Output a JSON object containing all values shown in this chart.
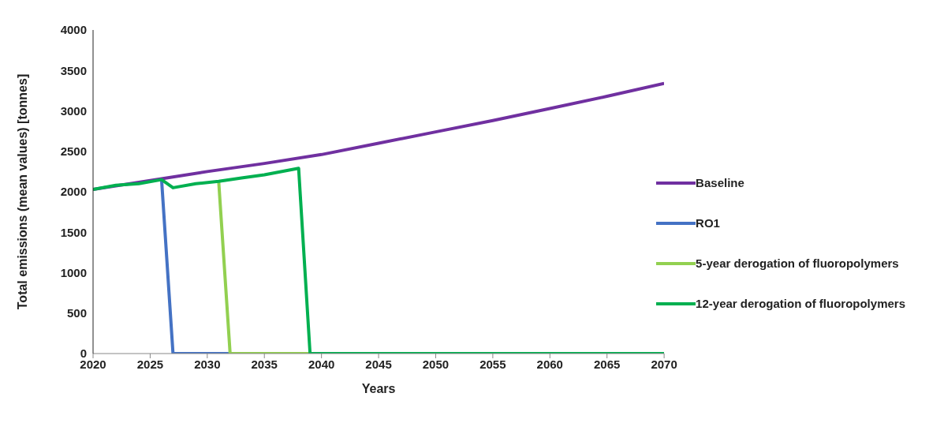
{
  "chart_data": {
    "type": "line",
    "xlabel": "Years",
    "ylabel": "Total emissions (mean values)  [tonnes]",
    "xlim": [
      2020,
      2070
    ],
    "xticks": [
      2020,
      2025,
      2030,
      2035,
      2040,
      2045,
      2050,
      2055,
      2060,
      2065,
      2070
    ],
    "ylim": [
      0,
      4000
    ],
    "yticks": [
      0,
      500,
      1000,
      1500,
      2000,
      2500,
      3000,
      3500,
      4000
    ],
    "grid": false,
    "legend": "right",
    "marker": "none",
    "line_style": "solid",
    "series": [
      {
        "name": "Baseline",
        "color": "#7030a0",
        "x": [
          2020,
          2026,
          2030,
          2035,
          2040,
          2045,
          2050,
          2055,
          2060,
          2065,
          2070
        ],
        "values": [
          2030,
          2160,
          2250,
          2350,
          2460,
          2600,
          2740,
          2880,
          3030,
          3180,
          3340
        ]
      },
      {
        "name": "RO1",
        "color": "#4472c4",
        "x": [
          2026,
          2027,
          2032
        ],
        "values": [
          2150,
          0,
          0
        ]
      },
      {
        "name": "5-year derogation of fluoropolymers",
        "color": "#92d050",
        "x": [
          2031,
          2032,
          2039
        ],
        "values": [
          2130,
          0,
          0
        ]
      },
      {
        "name": "12-year derogation of fluoropolymers",
        "color": "#00b050",
        "x": [
          2020,
          2022,
          2024,
          2026,
          2027,
          2029,
          2031,
          2033,
          2035,
          2038,
          2039,
          2070
        ],
        "values": [
          2030,
          2080,
          2100,
          2150,
          2050,
          2100,
          2130,
          2170,
          2210,
          2290,
          0,
          0
        ]
      }
    ]
  }
}
